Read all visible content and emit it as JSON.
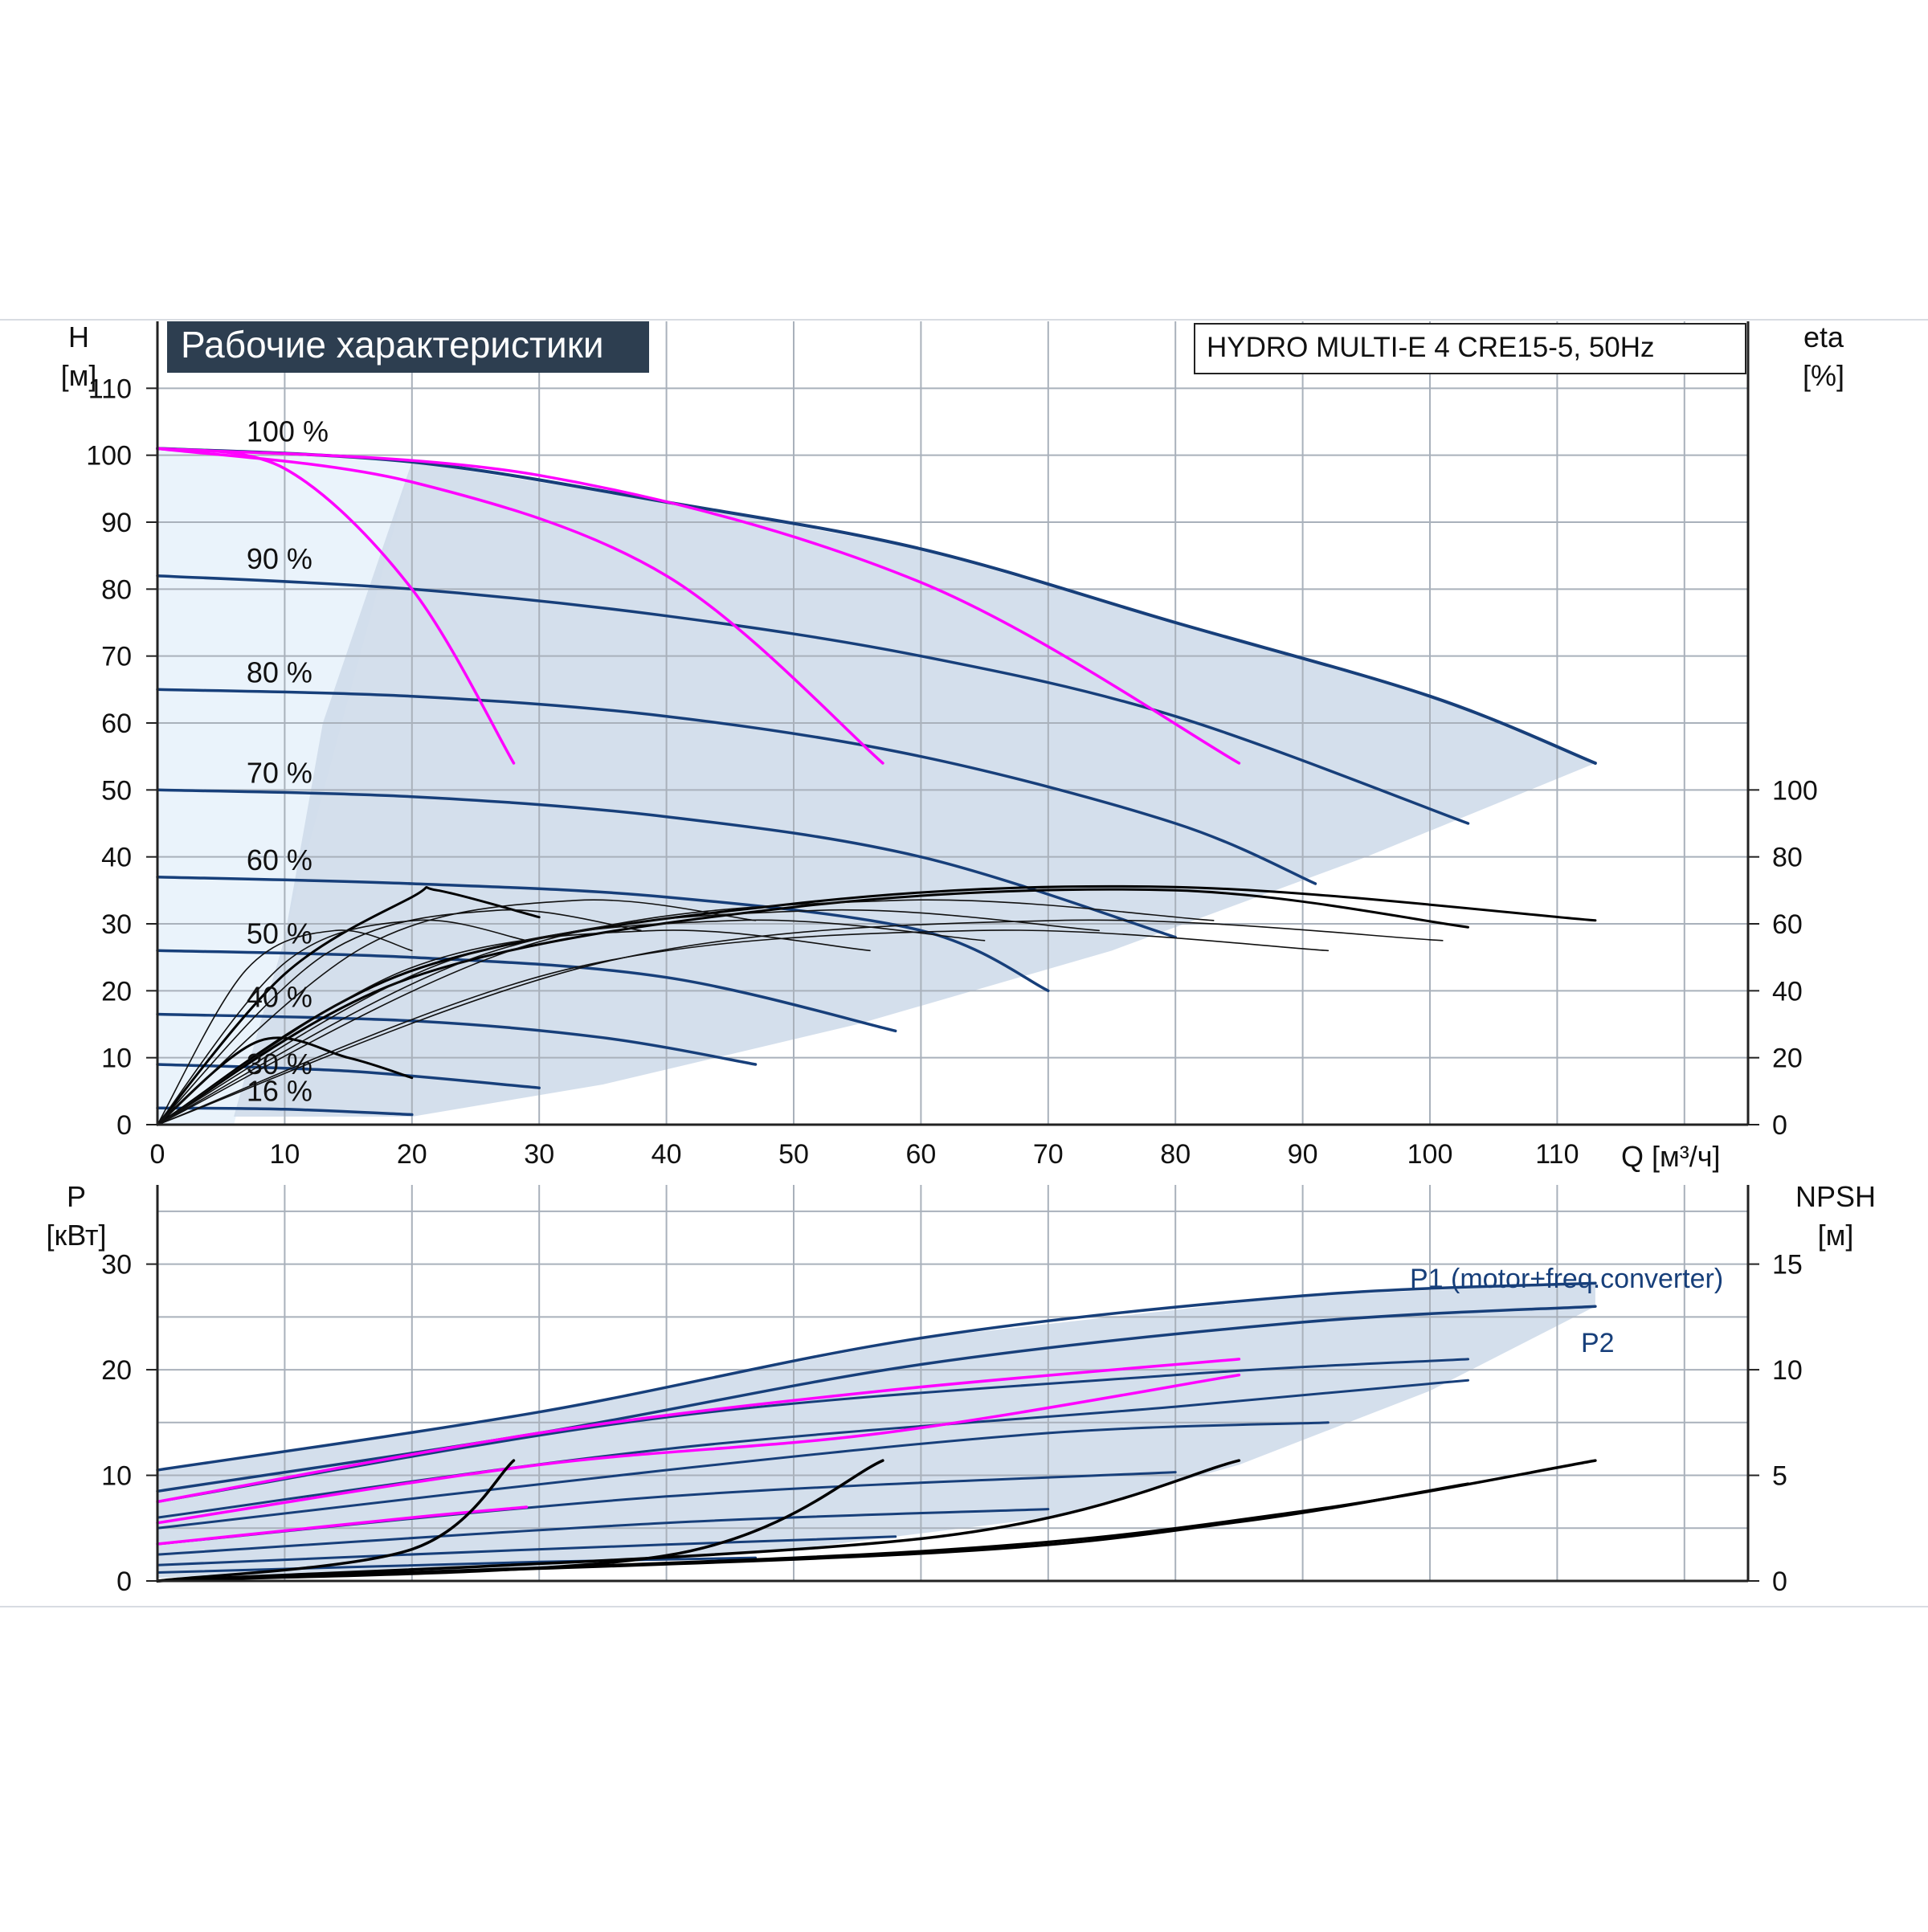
{
  "chart_data": [
    {
      "type": "line",
      "title": "Рабочие характеристики",
      "subtitle": "HYDRO MULTI-E 4 CRE15-5, 50Hz",
      "xlabel": "Q [м³/ч]",
      "ylabel": "H [м]",
      "ylabel_name": "H",
      "ylabel_unit": "[м]",
      "y2label_name": "eta",
      "y2label_unit": "[%]",
      "xlim": [
        0,
        125
      ],
      "ylim": [
        0,
        120
      ],
      "y2lim": [
        0,
        100
      ],
      "x_ticks": [
        0,
        10,
        20,
        30,
        40,
        50,
        60,
        70,
        80,
        90,
        100,
        110
      ],
      "y_ticks": [
        0,
        10,
        20,
        30,
        40,
        50,
        60,
        70,
        80,
        90,
        100,
        110
      ],
      "y2_ticks": [
        0,
        20,
        40,
        60,
        80,
        100
      ],
      "grid": true,
      "colors": {
        "head_curve": "#173f7a",
        "system_curve": "#ff00ff",
        "efficiency_curve": "#000000",
        "envelope_fill": "#cfdcea",
        "title_box": "#2d3e50"
      },
      "series": [
        {
          "name": "100 %",
          "kind": "head",
          "points": [
            [
              0,
              101
            ],
            [
              20,
              99
            ],
            [
              40,
              93
            ],
            [
              60,
              86
            ],
            [
              80,
              75
            ],
            [
              100,
              64
            ],
            [
              113,
              54
            ]
          ]
        },
        {
          "name": "90 %",
          "kind": "head",
          "points": [
            [
              0,
              82
            ],
            [
              20,
              80
            ],
            [
              40,
              76
            ],
            [
              60,
              70
            ],
            [
              80,
              61
            ],
            [
              103,
              45
            ]
          ]
        },
        {
          "name": "80 %",
          "kind": "head",
          "points": [
            [
              0,
              65
            ],
            [
              20,
              64
            ],
            [
              40,
              61
            ],
            [
              60,
              55
            ],
            [
              80,
              45
            ],
            [
              91,
              36
            ]
          ]
        },
        {
          "name": "70 %",
          "kind": "head",
          "points": [
            [
              0,
              50
            ],
            [
              20,
              49
            ],
            [
              40,
              46
            ],
            [
              60,
              40
            ],
            [
              80,
              28
            ]
          ]
        },
        {
          "name": "60 %",
          "kind": "head",
          "points": [
            [
              0,
              37
            ],
            [
              20,
              36
            ],
            [
              40,
              34
            ],
            [
              60,
              29
            ],
            [
              70,
              20
            ]
          ]
        },
        {
          "name": "50 %",
          "kind": "head",
          "points": [
            [
              0,
              26
            ],
            [
              20,
              25
            ],
            [
              40,
              22
            ],
            [
              58,
              14
            ]
          ]
        },
        {
          "name": "40 %",
          "kind": "head",
          "points": [
            [
              0,
              16.5
            ],
            [
              20,
              15.5
            ],
            [
              35,
              13
            ],
            [
              47,
              9
            ]
          ]
        },
        {
          "name": "30 %",
          "kind": "head",
          "points": [
            [
              0,
              9
            ],
            [
              15,
              8
            ],
            [
              30,
              5.5
            ]
          ]
        },
        {
          "name": "16 %",
          "kind": "head",
          "points": [
            [
              0,
              2.5
            ],
            [
              10,
              2.3
            ],
            [
              20,
              1.5
            ]
          ]
        },
        {
          "kind": "system",
          "points": [
            [
              0,
              101
            ],
            [
              10,
              98
            ],
            [
              20,
              80
            ],
            [
              28,
              54
            ]
          ]
        },
        {
          "kind": "system",
          "points": [
            [
              0,
              101
            ],
            [
              20,
              96
            ],
            [
              40,
              82
            ],
            [
              57,
              54
            ]
          ]
        },
        {
          "kind": "system",
          "points": [
            [
              0,
              101
            ],
            [
              30,
              97
            ],
            [
              60,
              81
            ],
            [
              85,
              54
            ]
          ]
        },
        {
          "kind": "efficiency",
          "points": [
            [
              0,
              0
            ],
            [
              20,
              46
            ],
            [
              50,
              66
            ],
            [
              80,
              71
            ],
            [
              113,
              61
            ]
          ]
        },
        {
          "kind": "efficiency",
          "points": [
            [
              0,
              0
            ],
            [
              20,
              44
            ],
            [
              50,
              65
            ],
            [
              80,
              70
            ],
            [
              103,
              59
            ]
          ]
        },
        {
          "kind": "efficiency",
          "points": [
            [
              0,
              0
            ],
            [
              10,
              45
            ],
            [
              20,
              68
            ],
            [
              22,
              70
            ],
            [
              30,
              62
            ]
          ]
        },
        {
          "kind": "efficiency",
          "points": [
            [
              0,
              0
            ],
            [
              8,
              25
            ],
            [
              15,
              20
            ],
            [
              20,
              14
            ]
          ]
        }
      ]
    },
    {
      "type": "line",
      "xlabel": "Q [м³/ч]",
      "ylabel": "P [кВт]",
      "ylabel_name": "P",
      "ylabel_unit": "[кВт]",
      "y2label_name": "NPSH",
      "y2label_unit": "[м]",
      "xlim": [
        0,
        125
      ],
      "ylim": [
        0,
        37.5
      ],
      "y2lim": [
        0,
        18.75
      ],
      "x_ticks": [
        0,
        10,
        20,
        30,
        40,
        50,
        60,
        70,
        80,
        90,
        100,
        110
      ],
      "y_ticks": [
        0,
        10,
        20,
        30
      ],
      "y2_ticks": [
        0,
        5,
        10,
        15
      ],
      "grid": true,
      "series": [
        {
          "name": "P1 (motor+freq.converter)",
          "kind": "power",
          "points": [
            [
              0,
              10.5
            ],
            [
              30,
              16
            ],
            [
              60,
              23
            ],
            [
              90,
              27
            ],
            [
              113,
              28.2
            ]
          ]
        },
        {
          "name": "P2",
          "kind": "power",
          "points": [
            [
              0,
              8.5
            ],
            [
              30,
              14
            ],
            [
              60,
              20.5
            ],
            [
              90,
              24.5
            ],
            [
              113,
              26
            ]
          ]
        },
        {
          "kind": "power",
          "points": [
            [
              0,
              7.5
            ],
            [
              40,
              15.5
            ],
            [
              80,
              19.5
            ],
            [
              103,
              21
            ]
          ]
        },
        {
          "kind": "power",
          "points": [
            [
              0,
              6
            ],
            [
              40,
              12.5
            ],
            [
              80,
              16.5
            ],
            [
              103,
              19
            ]
          ]
        },
        {
          "kind": "power",
          "points": [
            [
              0,
              5
            ],
            [
              40,
              10.5
            ],
            [
              70,
              14
            ],
            [
              92,
              15
            ]
          ]
        },
        {
          "kind": "power",
          "points": [
            [
              0,
              3.5
            ],
            [
              40,
              8
            ],
            [
              80,
              10.3
            ]
          ]
        },
        {
          "kind": "power",
          "points": [
            [
              0,
              2.5
            ],
            [
              40,
              5.5
            ],
            [
              70,
              6.8
            ]
          ]
        },
        {
          "kind": "power",
          "points": [
            [
              0,
              1.5
            ],
            [
              30,
              3
            ],
            [
              58,
              4.2
            ]
          ]
        },
        {
          "kind": "power",
          "points": [
            [
              0,
              0.8
            ],
            [
              30,
              1.8
            ],
            [
              47,
              2.2
            ]
          ]
        },
        {
          "kind": "system_power",
          "points": [
            [
              0,
              7.5
            ],
            [
              30,
              14
            ],
            [
              57,
              18
            ],
            [
              85,
              21
            ]
          ]
        },
        {
          "kind": "system_power",
          "points": [
            [
              0,
              5.5
            ],
            [
              30,
              11
            ],
            [
              57,
              14
            ],
            [
              85,
              19.5
            ]
          ]
        },
        {
          "kind": "system_power",
          "points": [
            [
              0,
              3.5
            ],
            [
              20,
              6
            ],
            [
              29,
              7
            ]
          ]
        },
        {
          "kind": "npsh",
          "points": [
            [
              0,
              0
            ],
            [
              60,
              1.4
            ],
            [
              90,
              3.3
            ],
            [
              113,
              5.7
            ]
          ]
        },
        {
          "kind": "npsh",
          "points": [
            [
              0,
              0
            ],
            [
              60,
              1.3
            ],
            [
              85,
              2.8
            ],
            [
              103,
              4.6
            ]
          ]
        },
        {
          "kind": "npsh",
          "points": [
            [
              0,
              0
            ],
            [
              40,
              1.2
            ],
            [
              57,
              5.7
            ]
          ]
        },
        {
          "kind": "npsh",
          "points": [
            [
              0,
              0
            ],
            [
              20,
              1.5
            ],
            [
              28,
              5.7
            ]
          ]
        },
        {
          "kind": "npsh",
          "points": [
            [
              0,
              0
            ],
            [
              60,
              2.0
            ],
            [
              85,
              5.7
            ]
          ]
        }
      ]
    }
  ]
}
